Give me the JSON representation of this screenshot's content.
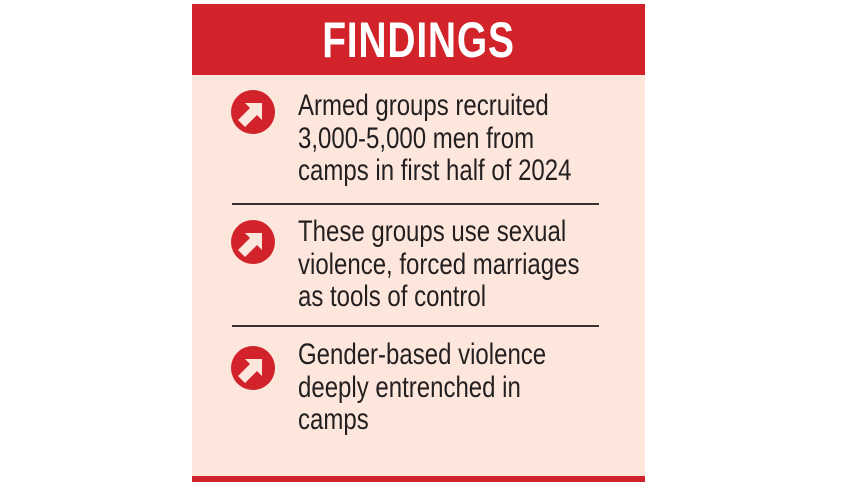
{
  "title": "FINDINGS",
  "accent_color": "#d2232a",
  "background_color": "#fde7dd",
  "findings": [
    {
      "icon": "arrow-up-right-circle-icon",
      "lines": [
        "Armed groups recruited",
        "3,000-5,000 men from",
        "camps in first half of 2024"
      ]
    },
    {
      "icon": "arrow-up-right-circle-icon",
      "lines": [
        "These groups use sexual",
        "violence, forced marriages",
        "as tools of control"
      ]
    },
    {
      "icon": "arrow-up-right-circle-icon",
      "lines": [
        "Gender-based violence",
        "deeply entrenched in",
        "camps"
      ]
    }
  ]
}
